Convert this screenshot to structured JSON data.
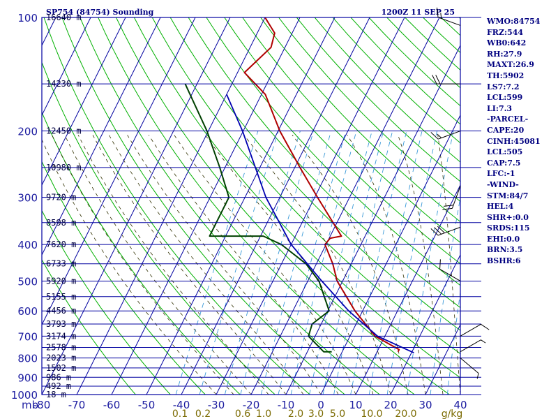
{
  "header": {
    "station": "SP754 (84754) Sounding",
    "time": "1200Z 11 SEP 25"
  },
  "colors": {
    "background": "#ffffff",
    "frame": "#0000a0",
    "isotherm": "#0000a0",
    "isobar": "#0000a0",
    "dry_adiabat": "#00b000",
    "moist_adiabat": "#303000",
    "mixing_ratio": "#3a9ad8",
    "temperature": "#b00000",
    "dewpoint": "#004000",
    "parcel": "#0000b0",
    "wind": "#000000",
    "text": "#000080"
  },
  "params": [
    "WMO:84754",
    "FRZ:544",
    "WB0:642",
    "RH:27.9",
    "MAXT:26.9",
    "TH:5902",
    "LS7:7.2",
    "LCL:599",
    "LI:7.3",
    "-PARCEL-",
    "CAPE:20",
    "CINH:45081",
    "LCL:505",
    "CAP:7.5",
    "LFC:-1",
    "-WIND-",
    "STM:84/7",
    "HEL:4",
    "SHR+:0.0",
    "SRDS:115",
    "EHI:0.0",
    "BRN:3.5",
    "BSHR:6"
  ],
  "pressure_axis_unit": "mb",
  "pressure_ticks": [
    {
      "p": 100,
      "label": "100"
    },
    {
      "p": 200,
      "label": "200"
    },
    {
      "p": 300,
      "label": "300"
    },
    {
      "p": 400,
      "label": "400"
    },
    {
      "p": 500,
      "label": "500"
    },
    {
      "p": 600,
      "label": "600"
    },
    {
      "p": 700,
      "label": "700"
    },
    {
      "p": 800,
      "label": "800"
    },
    {
      "p": 900,
      "label": "900"
    },
    {
      "p": 1000,
      "label": "1000"
    }
  ],
  "height_labels": [
    {
      "p": 100,
      "label": "16640 m"
    },
    {
      "p": 150,
      "label": "14230 m"
    },
    {
      "p": 200,
      "label": "12450 m"
    },
    {
      "p": 250,
      "label": "10980 m"
    },
    {
      "p": 300,
      "label": "9720 m"
    },
    {
      "p": 350,
      "label": "8598 m"
    },
    {
      "p": 400,
      "label": "7620 m"
    },
    {
      "p": 450,
      "label": "6733 m"
    },
    {
      "p": 500,
      "label": "5920 m"
    },
    {
      "p": 550,
      "label": "5155 m"
    },
    {
      "p": 600,
      "label": "4456 m"
    },
    {
      "p": 650,
      "label": "3793 m"
    },
    {
      "p": 700,
      "label": "3174 m"
    },
    {
      "p": 750,
      "label": "2578 m"
    },
    {
      "p": 800,
      "label": "2023 m"
    },
    {
      "p": 850,
      "label": "1502 m"
    },
    {
      "p": 900,
      "label": "986 m"
    },
    {
      "p": 950,
      "label": "492 m"
    },
    {
      "p": 1000,
      "label": "18 m"
    }
  ],
  "temperature_ticks": [
    "-80",
    "-70",
    "-60",
    "-50",
    "-40",
    "-30",
    "-20",
    "-10",
    "0",
    "10",
    "20",
    "30",
    "40"
  ],
  "mixing_ratio_ticks": [
    "0.1",
    "0.2",
    "0.6",
    "1.0",
    "2.0",
    "3.0",
    "5.0",
    "10.0",
    "20.0",
    "g/kg"
  ],
  "chart_data": {
    "type": "line",
    "title": "SP754 (84754) Sounding",
    "xlabel": "",
    "ylabel": "mb",
    "x_unit": "C",
    "xlim": [
      -80,
      40
    ],
    "ylim": [
      1000,
      100
    ],
    "y_scale": "log",
    "grid": true,
    "legend": "none",
    "series": [
      {
        "key": "temperature",
        "points": [
          {
            "p": 770,
            "t": 16.0
          },
          {
            "p": 760,
            "t": 16.0
          },
          {
            "p": 700,
            "t": 7.2
          },
          {
            "p": 600,
            "t": -2.2
          },
          {
            "p": 500,
            "t": -11.6
          },
          {
            "p": 450,
            "t": -15.3
          },
          {
            "p": 400,
            "t": -20.3
          },
          {
            "p": 385,
            "t": -19.7
          },
          {
            "p": 380,
            "t": -16.8
          },
          {
            "p": 300,
            "t": -29.2
          },
          {
            "p": 250,
            "t": -38.5
          },
          {
            "p": 200,
            "t": -49.5
          },
          {
            "p": 160,
            "t": -58.9
          },
          {
            "p": 140,
            "t": -68.0
          },
          {
            "p": 120,
            "t": -64.0
          },
          {
            "p": 110,
            "t": -65.0
          },
          {
            "p": 100,
            "t": -70.0
          }
        ]
      },
      {
        "key": "dewpoint",
        "points": [
          {
            "p": 770,
            "t": -3.0
          },
          {
            "p": 770,
            "t": -5.3
          },
          {
            "p": 700,
            "t": -11.9
          },
          {
            "p": 650,
            "t": -12.6
          },
          {
            "p": 600,
            "t": -9.6
          },
          {
            "p": 500,
            "t": -16.8
          },
          {
            "p": 450,
            "t": -23.0
          },
          {
            "p": 400,
            "t": -32.8
          },
          {
            "p": 380,
            "t": -39.2
          },
          {
            "p": 380,
            "t": -54.6
          },
          {
            "p": 300,
            "t": -54.6
          },
          {
            "p": 250,
            "t": -61.5
          },
          {
            "p": 200,
            "t": -70.4
          },
          {
            "p": 150,
            "t": -83.4
          }
        ]
      },
      {
        "key": "parcel",
        "points": [
          {
            "p": 775,
            "t": 20.7
          },
          {
            "p": 700,
            "t": 7.9
          },
          {
            "p": 600,
            "t": -4.0
          },
          {
            "p": 500,
            "t": -16.0
          },
          {
            "p": 400,
            "t": -30.0
          },
          {
            "p": 300,
            "t": -44.0
          },
          {
            "p": 200,
            "t": -60.2
          },
          {
            "p": 160,
            "t": -70.0
          }
        ]
      }
    ],
    "wind_barbs": [
      {
        "p": 105,
        "dir": 290,
        "kt": 15
      },
      {
        "p": 150,
        "dir": 270,
        "kt": 20
      },
      {
        "p": 200,
        "dir": 250,
        "kt": 15
      },
      {
        "p": 280,
        "dir": 200,
        "kt": 20
      },
      {
        "p": 360,
        "dir": 250,
        "kt": 30
      },
      {
        "p": 500,
        "dir": 300,
        "kt": 10
      },
      {
        "p": 700,
        "dir": 60,
        "kt": 10
      },
      {
        "p": 770,
        "dir": 60,
        "kt": 5
      },
      {
        "p": 800,
        "dir": 130,
        "kt": 5
      }
    ]
  }
}
